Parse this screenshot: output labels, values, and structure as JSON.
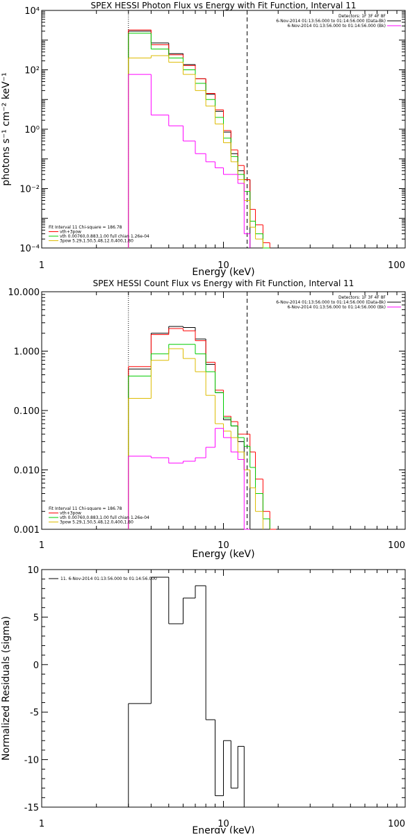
{
  "chart_data": [
    {
      "type": "line",
      "title": "SPEX HESSI Photon Flux vs Energy with Fit Function, Interval 11",
      "xlabel": "Energy (keV)",
      "ylabel": "photons s⁻¹ cm⁻² keV⁻¹",
      "xscale": "log",
      "yscale": "log",
      "xlim": [
        1,
        100
      ],
      "ylim": [
        0.0001,
        10000
      ],
      "x_tick_labels": [
        "1",
        "10",
        "100"
      ],
      "y_tick_labels": [
        "10⁻⁴",
        "10⁻²",
        "10⁰",
        "10²",
        "10⁴"
      ],
      "vlines": [
        {
          "x": 3.0,
          "style": "dotted"
        },
        {
          "x": 13.5,
          "style": "dashed"
        }
      ],
      "legend_topright": [
        {
          "text": "Detectors: 1F 3F 4F 8F",
          "color": ""
        },
        {
          "text": "6-Nov-2014 01:13:56.000 to 01:14:56.000 (Data-Bk)",
          "color": "#000000"
        },
        {
          "text": "6-Nov-2014 01:13:56.000 to 01:14:56.000 (Bk)",
          "color": "#ff00ff"
        }
      ],
      "legend_bottomleft": [
        {
          "text": "Fit Interval 11   Chi-square = 186.78",
          "color": ""
        },
        {
          "text": "vth+3pow",
          "color": "#ff0000"
        },
        {
          "text": "vth 0.00760,0.883,1.00   full chian 1.26e-04",
          "color": "#00cc00"
        },
        {
          "text": "3pow 5.29,1.50,5.48,12.0,400,1.80",
          "color": "#ddbb00"
        }
      ],
      "x_edges": [
        3.0,
        4.0,
        5.0,
        6.0,
        7.0,
        8.0,
        9.0,
        10.0,
        11.0,
        12.0,
        13.0,
        14.0,
        15.0,
        16.5,
        18.0
      ],
      "series": [
        {
          "color": "#000000",
          "values": [
            2000,
            800,
            350,
            150,
            50,
            15,
            4,
            0.8,
            0.15,
            0.04,
            0.02,
            null,
            null,
            null
          ]
        },
        {
          "color": "#ff0000",
          "values": [
            2200,
            700,
            320,
            140,
            50,
            16,
            4.5,
            0.9,
            0.2,
            0.06,
            0.02,
            0.002,
            0.0006,
            0.00015
          ]
        },
        {
          "color": "#00cc00",
          "values": [
            1700,
            500,
            250,
            100,
            35,
            10,
            2.5,
            0.5,
            0.12,
            0.03,
            0.008,
            0.0008,
            0.0003,
            0.0001
          ]
        },
        {
          "color": "#ddbb00",
          "values": [
            250,
            300,
            180,
            70,
            20,
            6,
            1.5,
            0.35,
            0.08,
            0.02,
            0.004,
            0.0005,
            0.0002,
            null
          ]
        },
        {
          "color": "#ff00ff",
          "values": [
            70,
            3,
            1.3,
            0.4,
            0.15,
            0.08,
            0.05,
            0.03,
            0.03,
            0.015,
            0.0003,
            null,
            null,
            null
          ]
        }
      ]
    },
    {
      "type": "line",
      "title": "SPEX HESSI Count Flux vs Energy with Fit Function, Interval 11",
      "xlabel": "Energy (keV)",
      "ylabel": "",
      "xscale": "log",
      "yscale": "log",
      "xlim": [
        1,
        100
      ],
      "ylim": [
        0.001,
        10
      ],
      "x_tick_labels": [
        "1",
        "10",
        "100"
      ],
      "y_tick_labels": [
        "0.001",
        "0.010",
        "0.100",
        "1.000",
        "10.000"
      ],
      "vlines": [
        {
          "x": 3.0,
          "style": "dotted"
        },
        {
          "x": 13.5,
          "style": "dashed"
        }
      ],
      "legend_topright": [
        {
          "text": "Detectors: 1F 3F 4F 8F",
          "color": ""
        },
        {
          "text": "6-Nov-2014 01:13:56.000 to 01:14:56.000 (Data-Bk)",
          "color": "#000000"
        },
        {
          "text": "6-Nov-2014 01:13:56.000 to 01:14:56.000 (Bk)",
          "color": "#ff00ff"
        }
      ],
      "legend_bottomleft": [
        {
          "text": "Fit Interval 11   Chi-square = 186.78",
          "color": ""
        },
        {
          "text": "vth+3pow",
          "color": "#ff0000"
        },
        {
          "text": "vth 0.00760,0.883,1.00   full chian 1.26e-04",
          "color": "#00cc00"
        },
        {
          "text": "3pow 5.29,1.50,5.48,12.0,400,1.80",
          "color": "#ddbb00"
        }
      ],
      "x_edges": [
        3.0,
        4.0,
        5.0,
        6.0,
        7.0,
        8.0,
        9.0,
        10.0,
        11.0,
        12.0,
        13.0,
        14.0,
        15.0,
        16.5,
        18.0,
        19.5
      ],
      "series": [
        {
          "color": "#000000",
          "values": [
            0.5,
            2.0,
            2.6,
            2.5,
            1.6,
            0.6,
            0.2,
            0.07,
            0.055,
            0.03,
            0.01,
            null,
            null,
            null,
            null
          ]
        },
        {
          "color": "#ff0000",
          "values": [
            0.55,
            1.9,
            2.4,
            2.2,
            1.5,
            0.65,
            0.22,
            0.08,
            0.065,
            0.04,
            0.04,
            0.02,
            0.007,
            0.002,
            0.001
          ]
        },
        {
          "color": "#00cc00",
          "values": [
            0.38,
            0.9,
            1.3,
            1.3,
            0.9,
            0.45,
            0.2,
            0.075,
            0.055,
            0.035,
            0.025,
            0.011,
            0.004,
            0.0015,
            null
          ]
        },
        {
          "color": "#ddbb00",
          "values": [
            0.16,
            0.7,
            1.1,
            0.75,
            0.45,
            0.18,
            0.06,
            0.045,
            0.035,
            0.02,
            0.01,
            0.005,
            0.002,
            null,
            null
          ]
        },
        {
          "color": "#ff00ff",
          "values": [
            0.017,
            0.016,
            0.013,
            0.014,
            0.016,
            0.024,
            0.05,
            0.035,
            0.02,
            0.015,
            0.001,
            null,
            null,
            null,
            null
          ]
        }
      ]
    },
    {
      "type": "line",
      "title": "",
      "xlabel": "Energy (keV)",
      "ylabel": "Normalized Residuals (sigma)",
      "xscale": "log",
      "yscale": "linear",
      "xlim": [
        1,
        100
      ],
      "ylim": [
        -15,
        10
      ],
      "x_tick_labels": [
        "1",
        "10",
        "100"
      ],
      "y_tick_labels": [
        "-15",
        "-10",
        "-5",
        "0",
        "5",
        "10"
      ],
      "legend_topleft": [
        {
          "text": "11.  6-Nov-2014 01:13:56.000 to 01:14:56.000",
          "color": "#000000"
        }
      ],
      "x_edges": [
        3.0,
        4.0,
        5.0,
        6.0,
        7.0,
        8.0,
        9.0,
        10.0,
        11.0,
        12.0,
        13.0
      ],
      "series": [
        {
          "color": "#000000",
          "values": [
            -4.1,
            9.2,
            4.3,
            7.0,
            8.3,
            -5.8,
            -13.8,
            -8.0,
            -13.0,
            -8.6
          ]
        }
      ]
    }
  ]
}
